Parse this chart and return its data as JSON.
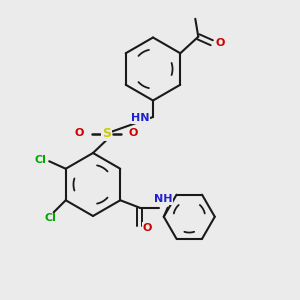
{
  "bg_color": "#ebebeb",
  "bond_color": "#1a1a1a",
  "colors": {
    "N": "#2222cc",
    "O": "#cc0000",
    "S": "#cccc00",
    "Cl": "#00aa00",
    "H": "#888888",
    "C": "#1a1a1a"
  },
  "figsize": [
    3.0,
    3.0
  ],
  "dpi": 100
}
